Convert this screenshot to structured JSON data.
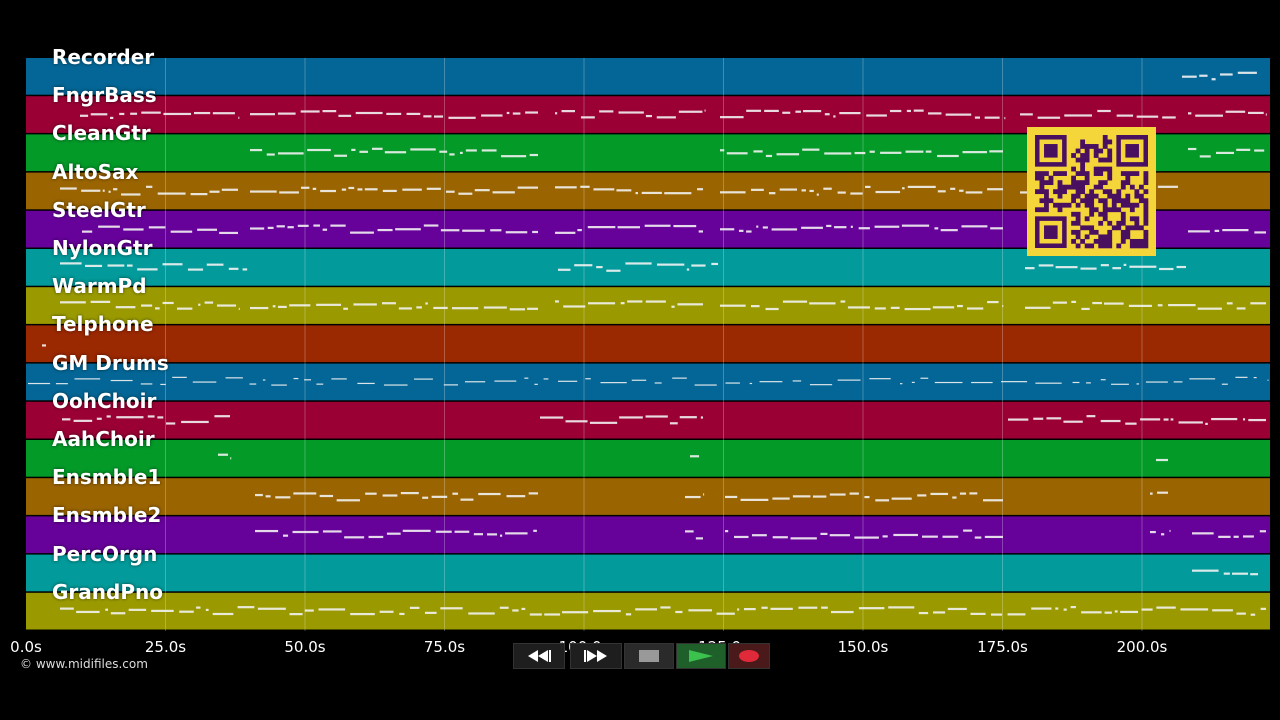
{
  "tracks": [
    {
      "name": "Recorder",
      "color": "#046696"
    },
    {
      "name": "FngrBass",
      "color": "#9a0034"
    },
    {
      "name": "CleanGtr",
      "color": "#039a28"
    },
    {
      "name": "AltoSax",
      "color": "#9a6400"
    },
    {
      "name": "SteelGtr",
      "color": "#66029a"
    },
    {
      "name": "NylonGtr",
      "color": "#029a9a"
    },
    {
      "name": "WarmPd",
      "color": "#9a9a00"
    },
    {
      "name": "Telphone",
      "color": "#9a2800"
    },
    {
      "name": "GM Drums",
      "color": "#046696"
    },
    {
      "name": "OohChoir",
      "color": "#9a0034"
    },
    {
      "name": "AahChoir",
      "color": "#039a28"
    },
    {
      "name": "Ensmble1",
      "color": "#9a6400"
    },
    {
      "name": "Ensmble2",
      "color": "#66029a"
    },
    {
      "name": "PercOrgn",
      "color": "#029a9a"
    },
    {
      "name": "GrandPno",
      "color": "#9a9a00"
    }
  ],
  "timeline": {
    "ticks": [
      "0.0s",
      "25.0s",
      "50.0s",
      "75.0s",
      "100.0s",
      "125.0s",
      "150.0s",
      "175.0s",
      "200.0s"
    ]
  },
  "copyright": "© www.midifiles.com",
  "transport": {
    "rewind_icon": "rewind-icon",
    "forward_icon": "fast-forward-icon",
    "stop_icon": "stop-icon",
    "play_icon": "play-icon",
    "record_icon": "record-icon"
  },
  "colors": {
    "qr_background": "#f5d63a",
    "qr_foreground": "#4a1060",
    "note": "#f2f2f2"
  }
}
